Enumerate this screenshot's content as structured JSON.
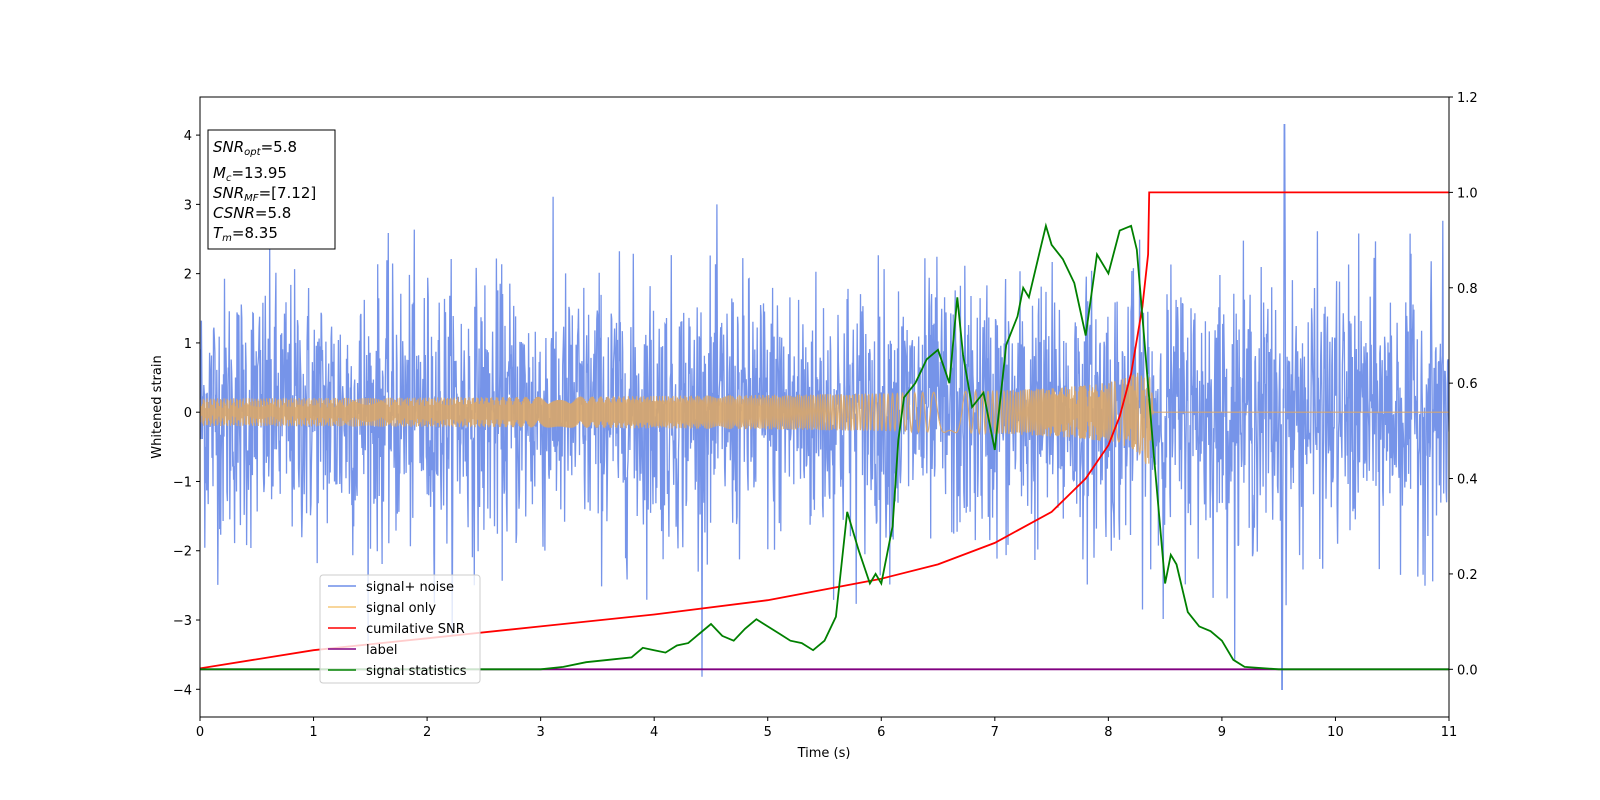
{
  "chart_data": {
    "type": "line",
    "xlabel": "Time (s)",
    "ylabel": "Whitened strain",
    "xlim": [
      0,
      11
    ],
    "ylim": [
      -4.4,
      4.55
    ],
    "y2lim": [
      -0.1,
      1.2
    ],
    "x_ticks": [
      "0",
      "1",
      "2",
      "3",
      "4",
      "5",
      "6",
      "7",
      "8",
      "9",
      "10",
      "11"
    ],
    "y_ticks": [
      "4",
      "3",
      "2",
      "1",
      "0",
      "−1",
      "−2",
      "−3",
      "−4"
    ],
    "y2_ticks": [
      "1.2",
      "1.0",
      "0.8",
      "0.6",
      "0.4",
      "0.2",
      "0.0"
    ],
    "info_box": {
      "snr_opt": {
        "main": "SNR",
        "sub": "opt",
        "rest": "=5.8"
      },
      "mc": {
        "main": "M",
        "sub": "c",
        "rest": "=13.95"
      },
      "snr_mf": {
        "main": "SNR",
        "sub": "MF",
        "rest": "=[7.12]"
      },
      "csnr": {
        "main": "CSNR",
        "sub": "",
        "rest": "=5.8"
      },
      "tm": {
        "main": "T",
        "sub": "m",
        "rest": "=8.35"
      }
    },
    "legend": {
      "placement": "lower-left",
      "entries": [
        {
          "label": "signal+ noise",
          "color": "#6f8ee8"
        },
        {
          "label": "signal only",
          "color": "#f5c87a"
        },
        {
          "label": "cumilative SNR",
          "color": "#ff0000"
        },
        {
          "label": "label",
          "color": "#800080"
        },
        {
          "label": "signal statistics",
          "color": "#008000"
        }
      ]
    },
    "series": [
      {
        "name": "signal+ noise",
        "axis": "left",
        "color": "#6f8ee8",
        "noise_std": 0.95,
        "noise_peak": 4.15,
        "duration": 11
      },
      {
        "name": "signal only",
        "axis": "left",
        "color": "#d9a66a",
        "merger_time": 8.35,
        "peak_amplitude": 1.0,
        "end_time": 8.4
      },
      {
        "name": "cumilative SNR",
        "axis": "right",
        "color": "#ff0000",
        "x": [
          0,
          1,
          2,
          3,
          4,
          5,
          6,
          6.5,
          7,
          7.5,
          7.8,
          8.0,
          8.1,
          8.2,
          8.3,
          8.35,
          8.36,
          11
        ],
        "y": [
          0.002,
          0.04,
          0.065,
          0.09,
          0.115,
          0.145,
          0.19,
          0.22,
          0.265,
          0.33,
          0.4,
          0.47,
          0.53,
          0.62,
          0.76,
          0.87,
          1.0,
          1.0
        ]
      },
      {
        "name": "label",
        "axis": "right",
        "color": "#800080",
        "x": [
          0,
          11
        ],
        "y": [
          0,
          0
        ]
      },
      {
        "name": "signal statistics",
        "axis": "right",
        "color": "#008000",
        "x": [
          0,
          3.0,
          3.2,
          3.4,
          3.6,
          3.8,
          3.9,
          4.0,
          4.1,
          4.2,
          4.3,
          4.4,
          4.5,
          4.6,
          4.7,
          4.8,
          4.9,
          5.0,
          5.1,
          5.2,
          5.3,
          5.4,
          5.5,
          5.6,
          5.7,
          5.8,
          5.9,
          5.95,
          6.0,
          6.1,
          6.15,
          6.2,
          6.3,
          6.4,
          6.5,
          6.6,
          6.67,
          6.72,
          6.8,
          6.9,
          7.0,
          7.1,
          7.2,
          7.25,
          7.3,
          7.4,
          7.45,
          7.5,
          7.6,
          7.7,
          7.8,
          7.9,
          8.0,
          8.1,
          8.2,
          8.25,
          8.3,
          8.4,
          8.5,
          8.55,
          8.6,
          8.7,
          8.8,
          8.9,
          9.0,
          9.1,
          9.2,
          9.5,
          11
        ],
        "y": [
          0.0,
          0.0,
          0.005,
          0.015,
          0.02,
          0.025,
          0.045,
          0.04,
          0.035,
          0.05,
          0.055,
          0.075,
          0.095,
          0.07,
          0.06,
          0.085,
          0.105,
          0.09,
          0.075,
          0.06,
          0.055,
          0.04,
          0.06,
          0.11,
          0.33,
          0.25,
          0.18,
          0.2,
          0.18,
          0.3,
          0.48,
          0.57,
          0.6,
          0.65,
          0.67,
          0.6,
          0.78,
          0.66,
          0.55,
          0.58,
          0.46,
          0.68,
          0.74,
          0.8,
          0.78,
          0.88,
          0.93,
          0.89,
          0.86,
          0.81,
          0.7,
          0.87,
          0.83,
          0.92,
          0.93,
          0.88,
          0.74,
          0.45,
          0.18,
          0.24,
          0.22,
          0.12,
          0.09,
          0.08,
          0.06,
          0.02,
          0.005,
          0.0,
          0.0
        ]
      }
    ]
  }
}
